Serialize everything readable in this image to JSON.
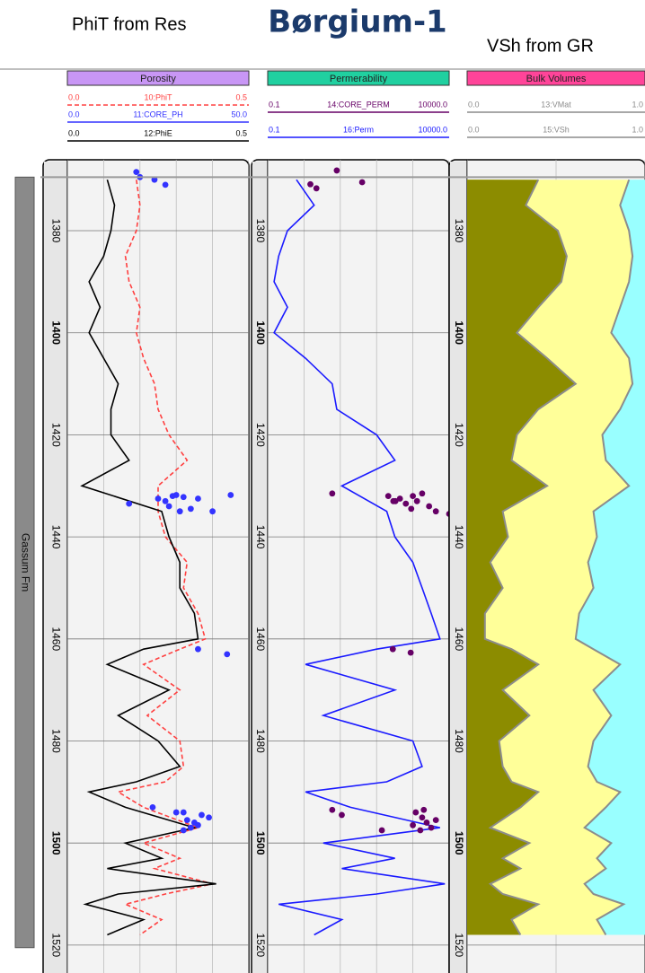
{
  "title": "Børgium-1",
  "subtitles": [
    "PhiT from Res",
    "VSh from GR"
  ],
  "zones": [
    {
      "name": "Gassum Fm",
      "top": 1369.5,
      "base": 1520.5
    }
  ],
  "depth_axis": {
    "ylim": [
      1368,
      1526
    ],
    "yticks": [
      1380,
      1400,
      1420,
      1440,
      1460,
      1480,
      1500,
      1520
    ]
  },
  "chart_data": [
    {
      "type": "well_log",
      "title": "Porosity",
      "header_color": "#c896f5",
      "log": false,
      "xticks": [
        0,
        0.1,
        0.2,
        0.3,
        0.4,
        0.5
      ],
      "depth": [
        1370,
        1375,
        1380,
        1385,
        1390,
        1395,
        1400,
        1405,
        1410,
        1415,
        1420,
        1425,
        1430,
        1435,
        1440,
        1445,
        1450,
        1455,
        1460,
        1462,
        1465,
        1470,
        1475,
        1480,
        1485,
        1488,
        1490,
        1493,
        1497,
        1500,
        1503,
        1505,
        1508,
        1510,
        1512,
        1515,
        1518
      ],
      "series": [
        {
          "name": "10:PhiT",
          "mark": "line",
          "color": "#ff4040",
          "dash": true,
          "scale": [
            {
              "value": 0,
              "label": "0.0"
            },
            {
              "value": 0.5,
              "label": "0.5"
            }
          ],
          "values": [
            0.19,
            0.2,
            0.19,
            0.16,
            0.17,
            0.2,
            0.19,
            0.21,
            0.24,
            0.25,
            0.28,
            0.33,
            0.25,
            0.25,
            0.27,
            0.33,
            0.32,
            0.36,
            0.38,
            0.31,
            0.21,
            0.31,
            0.22,
            0.31,
            0.32,
            0.27,
            0.14,
            0.21,
            0.36,
            0.21,
            0.31,
            0.24,
            0.4,
            0.27,
            0.16,
            0.26,
            0.2
          ]
        },
        {
          "name": "11:CORE_PH",
          "mark": "dot",
          "color": "#3333ff",
          "dash": false,
          "scale": [
            {
              "value": 0,
              "label": "0.0"
            },
            {
              "value": 50,
              "label": "50.0"
            }
          ],
          "depth": [
            1368.5,
            1369.5,
            1370,
            1371,
            1433.5,
            1432.5,
            1433,
            1432,
            1431.8,
            1432.2,
            1434.5,
            1432.5,
            1435,
            1431.8,
            1435,
            1434,
            1462,
            1463,
            1493,
            1494,
            1495.5,
            1496,
            1494.5,
            1495,
            1497.5,
            1497,
            1494,
            1496.5
          ],
          "values": [
            19,
            20,
            24,
            27,
            17,
            25,
            27,
            29,
            30,
            32,
            34,
            36,
            40,
            45,
            31,
            28,
            36,
            44,
            23.5,
            32,
            33,
            35,
            37,
            39,
            32,
            34,
            30,
            36
          ]
        },
        {
          "name": "12:PhiE",
          "mark": "line",
          "color": "#000000",
          "dash": false,
          "scale": [
            {
              "value": 0,
              "label": "0.0"
            },
            {
              "value": 0.5,
              "label": "0.5"
            }
          ],
          "values": [
            0.11,
            0.13,
            0.12,
            0.1,
            0.06,
            0.09,
            0.06,
            0.1,
            0.14,
            0.12,
            0.12,
            0.17,
            0.04,
            0.26,
            0.28,
            0.31,
            0.31,
            0.35,
            0.36,
            0.21,
            0.11,
            0.28,
            0.14,
            0.25,
            0.31,
            0.19,
            0.06,
            0.16,
            0.35,
            0.16,
            0.26,
            0.11,
            0.41,
            0.14,
            0.05,
            0.21,
            0.11
          ]
        }
      ]
    },
    {
      "type": "well_log",
      "title": "Permerability",
      "header_color": "#20d0a0",
      "log": true,
      "xticks": [
        0.1,
        1,
        10,
        100,
        1000,
        10000
      ],
      "depth": [
        1370,
        1375,
        1380,
        1385,
        1390,
        1395,
        1400,
        1405,
        1410,
        1415,
        1420,
        1425,
        1430,
        1435,
        1440,
        1445,
        1450,
        1455,
        1460,
        1462,
        1465,
        1470,
        1475,
        1480,
        1485,
        1488,
        1490,
        1493,
        1497,
        1500,
        1503,
        1505,
        1508,
        1510,
        1512,
        1515,
        1518
      ],
      "series": [
        {
          "name": "14:CORE_PERM",
          "mark": "dot",
          "color": "#660066",
          "dash": false,
          "scale": [
            {
              "value": 0.1,
              "label": "0.1"
            },
            {
              "value": 10000,
              "label": "10000.0"
            }
          ],
          "depth": [
            1368.2,
            1370.9,
            1371.7,
            1370.5,
            1431.5,
            1432,
            1433,
            1432.5,
            1433.5,
            1432,
            1433,
            1431.5,
            1434,
            1435,
            1435.5,
            1434.5,
            1433,
            1462,
            1462.7,
            1493.5,
            1494.5,
            1497.5,
            1494,
            1495,
            1496,
            1496.5,
            1497,
            1495.5,
            1497.5,
            1493.5
          ],
          "values": [
            8,
            1.5,
            2.2,
            40,
            6,
            210,
            290,
            440,
            640,
            1000,
            1300,
            1800,
            2800,
            4300,
            10000,
            900,
            330,
            280,
            870,
            6,
            11,
            140,
            1200,
            1800,
            2400,
            1000,
            3200,
            4300,
            1600,
            2000
          ]
        },
        {
          "name": "16:Perm",
          "mark": "line",
          "color": "#1a1aff",
          "dash": false,
          "scale": [
            {
              "value": 0.1,
              "label": "0.1"
            },
            {
              "value": 10000,
              "label": "10000.0"
            }
          ],
          "values": [
            0.62,
            1.9,
            0.35,
            0.2,
            0.15,
            0.35,
            0.15,
            1.1,
            6,
            8,
            100,
            320,
            11,
            190,
            320,
            1000,
            1800,
            3200,
            5600,
            100,
            1.1,
            320,
            3.4,
            1000,
            1800,
            190,
            1.1,
            19,
            5600,
            3.4,
            320,
            11,
            7600,
            100,
            0.2,
            11,
            1.9
          ]
        }
      ]
    },
    {
      "type": "bulk_volumes",
      "title": "Bulk Volumes",
      "header_color": "#ff4499",
      "log": false,
      "fill_right": "#99ffff",
      "xticks": [
        0,
        0.5,
        1
      ],
      "depth": [
        1370,
        1375,
        1380,
        1385,
        1390,
        1395,
        1400,
        1405,
        1410,
        1415,
        1420,
        1425,
        1430,
        1435,
        1440,
        1445,
        1450,
        1455,
        1460,
        1462,
        1465,
        1470,
        1475,
        1480,
        1485,
        1488,
        1490,
        1493,
        1497,
        1500,
        1503,
        1505,
        1508,
        1510,
        1512,
        1515,
        1518
      ],
      "series": [
        {
          "name": "13:VMat",
          "mark": "area",
          "color": "#8c8c8c",
          "fill": "#ffff99",
          "dash": false,
          "scale": [
            {
              "value": 0,
              "label": "0.0"
            },
            {
              "value": 1,
              "label": "1.0"
            }
          ],
          "values": [
            0.91,
            0.86,
            0.91,
            0.93,
            0.91,
            0.86,
            0.81,
            0.91,
            0.93,
            0.86,
            0.76,
            0.78,
            0.91,
            0.71,
            0.73,
            0.68,
            0.71,
            0.63,
            0.61,
            0.71,
            0.86,
            0.71,
            0.81,
            0.71,
            0.68,
            0.73,
            0.86,
            0.78,
            0.66,
            0.81,
            0.73,
            0.78,
            0.66,
            0.71,
            0.88,
            0.73,
            0.78
          ]
        },
        {
          "name": "15:VSh",
          "mark": "area",
          "color": "#8c8c8c",
          "fill": "#8c8c00",
          "dash": false,
          "scale": [
            {
              "value": 0,
              "label": "0.0"
            },
            {
              "value": 1,
              "label": "1.0"
            }
          ],
          "values": [
            0.4,
            0.33,
            0.51,
            0.56,
            0.53,
            0.4,
            0.28,
            0.45,
            0.61,
            0.4,
            0.28,
            0.25,
            0.45,
            0.2,
            0.23,
            0.13,
            0.2,
            0.1,
            0.1,
            0.25,
            0.4,
            0.2,
            0.35,
            0.18,
            0.2,
            0.25,
            0.4,
            0.3,
            0.13,
            0.35,
            0.2,
            0.3,
            0.13,
            0.2,
            0.4,
            0.25,
            0.3
          ]
        }
      ]
    }
  ]
}
